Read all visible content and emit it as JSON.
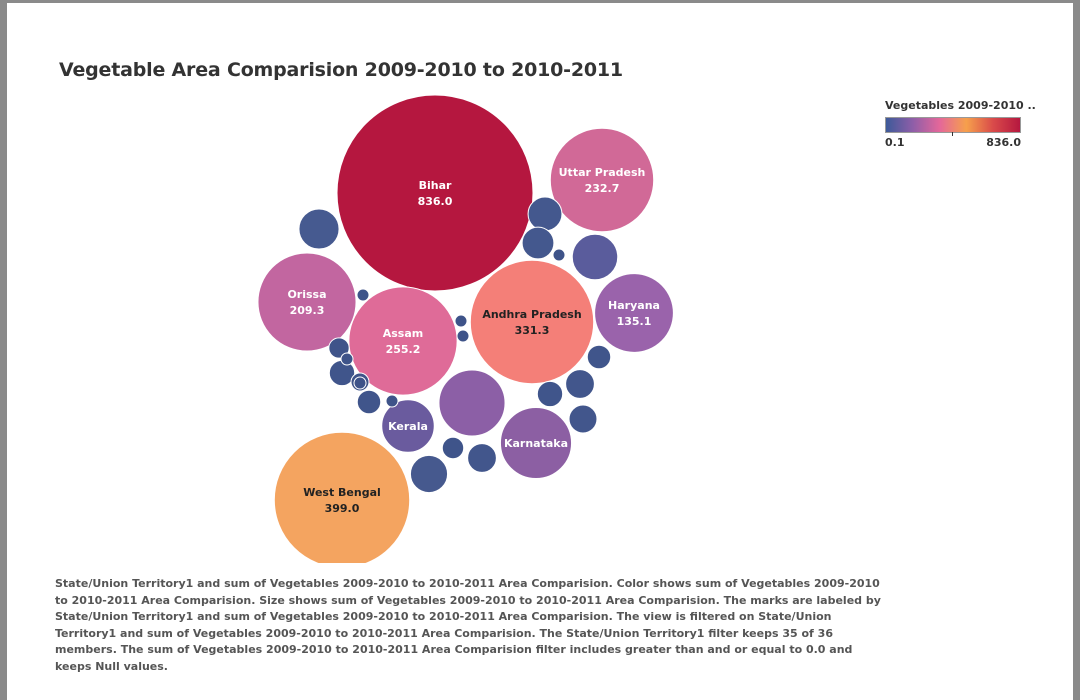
{
  "chart_data": {
    "type": "packed-bubble",
    "title": "Vegetable Area Comparision 2009-2010 to 2010-2011",
    "legend": {
      "title": "Vegetables 2009-2010 ..",
      "min_label": "0.1",
      "max_label": "836.0",
      "min": 0.1,
      "max": 836.0,
      "placement": "top-right"
    },
    "bubbles": [
      {
        "label": "Bihar",
        "value": 836.0,
        "value_label": "836.0",
        "color": "#b5173f"
      },
      {
        "label": "West Bengal",
        "value": 399.0,
        "value_label": "399.0",
        "color": "#f4a460"
      },
      {
        "label": "Andhra Pradesh",
        "value": 331.3,
        "value_label": "331.3",
        "color": "#f47f78"
      },
      {
        "label": "Assam",
        "value": 255.2,
        "value_label": "255.2",
        "color": "#df6b98"
      },
      {
        "label": "Uttar Pradesh",
        "value": 232.7,
        "value_label": "232.7",
        "color": "#d16997"
      },
      {
        "label": "Orissa",
        "value": 209.3,
        "value_label": "209.3",
        "color": "#c266a0"
      },
      {
        "label": "Haryana",
        "value": 135.1,
        "value_label": "135.1",
        "color": "#9a63ab"
      },
      {
        "label": "Karnataka",
        "value": 110,
        "value_label": "",
        "color": "#8c5fa3"
      },
      {
        "label": "",
        "value": 95,
        "value_label": "",
        "color": "#8c5fa6"
      },
      {
        "label": "Kerala",
        "value": 60,
        "value_label": "",
        "color": "#6a5b9e"
      },
      {
        "label": "",
        "value": 45,
        "value_label": "",
        "color": "#5a5c9c"
      },
      {
        "label": "",
        "value": 35,
        "value_label": "",
        "color": "#465a90"
      },
      {
        "label": "",
        "value": 30,
        "value_label": "",
        "color": "#46598e"
      },
      {
        "label": "",
        "value": 25,
        "value_label": "",
        "color": "#44588e"
      },
      {
        "label": "",
        "value": 22,
        "value_label": "",
        "color": "#44588e"
      },
      {
        "label": "",
        "value": 18,
        "value_label": "",
        "color": "#42568c"
      },
      {
        "label": "",
        "value": 18,
        "value_label": "",
        "color": "#42568c"
      },
      {
        "label": "",
        "value": 17,
        "value_label": "",
        "color": "#42568c"
      },
      {
        "label": "",
        "value": 14,
        "value_label": "",
        "color": "#40558b"
      },
      {
        "label": "",
        "value": 14,
        "value_label": "",
        "color": "#40558b"
      },
      {
        "label": "",
        "value": 12,
        "value_label": "",
        "color": "#40558b"
      },
      {
        "label": "",
        "value": 12,
        "value_label": "",
        "color": "#40558b"
      },
      {
        "label": "",
        "value": 10,
        "value_label": "",
        "color": "#3f548a"
      },
      {
        "label": "",
        "value": 9,
        "value_label": "",
        "color": "#3f548a"
      },
      {
        "label": "",
        "value": 7,
        "value_label": "",
        "color": "#3f548a"
      },
      {
        "label": "",
        "value": 3,
        "value_label": "",
        "color": "#3e5389"
      },
      {
        "label": "",
        "value": 2,
        "value_label": "",
        "color": "#3e5389"
      },
      {
        "label": "",
        "value": 2,
        "value_label": "",
        "color": "#3e5389"
      },
      {
        "label": "",
        "value": 2,
        "value_label": "",
        "color": "#3e5389"
      },
      {
        "label": "",
        "value": 1.5,
        "value_label": "",
        "color": "#3e5389"
      },
      {
        "label": "",
        "value": 1.5,
        "value_label": "",
        "color": "#3e5389"
      },
      {
        "label": "",
        "value": 1,
        "value_label": "",
        "color": "#3e5389"
      }
    ]
  },
  "caption": "State/Union Territory1 and sum of Vegetables 2009-2010 to 2010-2011 Area Comparision.  Color shows sum of Vegetables 2009-2010 to 2010-2011 Area Comparision.  Size shows sum of Vegetables 2009-2010 to 2010-2011 Area Comparision.  The marks are labeled by State/Union Territory1 and sum of Vegetables 2009-2010 to 2010-2011 Area Comparision. The view is filtered on State/Union Territory1 and sum of Vegetables 2009-2010 to 2010-2011 Area Comparision. The State/Union Territory1 filter keeps 35 of 36 members. The sum of Vegetables 2009-2010 to 2010-2011 Area Comparision filter includes greater than and or equal to 0.0 and keeps Null values.",
  "colors": {
    "scale": [
      "#3d5a99",
      "#8e5ea8",
      "#e4679a",
      "#f6a04c",
      "#d94a4a",
      "#b5173f"
    ]
  }
}
